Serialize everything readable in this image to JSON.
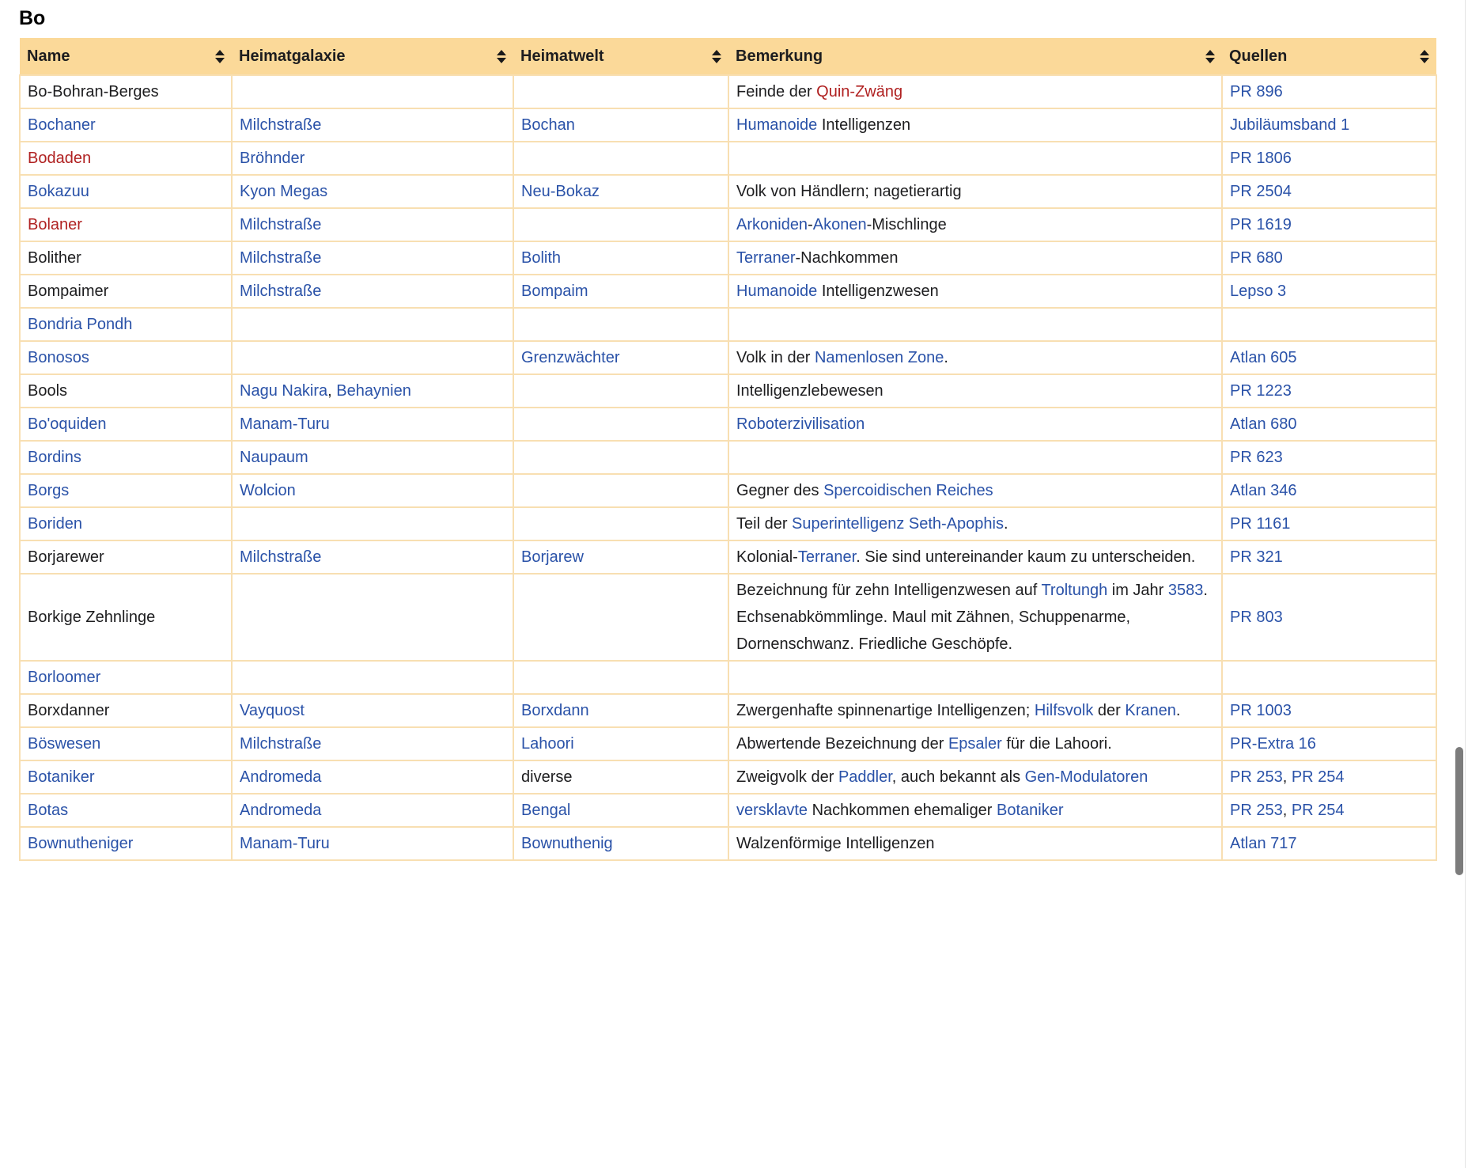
{
  "page": {
    "heading": "Bo"
  },
  "colors": {
    "header_bg": "#FBD999",
    "cell_border": "#F8DFB2",
    "link": "#2A52A8",
    "missing_link": "#B02121",
    "text": "#1D1D1F",
    "scrollbar_thumb": "#7C7C7C"
  },
  "table": {
    "columns": [
      {
        "key": "name",
        "label": "Name"
      },
      {
        "key": "galaxy",
        "label": "Heimatgalaxie"
      },
      {
        "key": "world",
        "label": "Heimatwelt"
      },
      {
        "key": "remark",
        "label": "Bemerkung"
      },
      {
        "key": "sources",
        "label": "Quellen"
      }
    ],
    "rows": [
      {
        "name": [
          {
            "k": "p",
            "t": "Bo-Bohran-Berges"
          }
        ],
        "galaxy": [],
        "world": [],
        "remark": [
          {
            "k": "p",
            "t": "Feinde der "
          },
          {
            "k": "r",
            "t": "Quin-Zwäng"
          }
        ],
        "sources": [
          {
            "k": "l",
            "t": "PR 896"
          }
        ]
      },
      {
        "name": [
          {
            "k": "l",
            "t": "Bochaner"
          }
        ],
        "galaxy": [
          {
            "k": "l",
            "t": "Milchstraße"
          }
        ],
        "world": [
          {
            "k": "l",
            "t": "Bochan"
          }
        ],
        "remark": [
          {
            "k": "l",
            "t": "Humanoide"
          },
          {
            "k": "p",
            "t": " Intelligenzen"
          }
        ],
        "sources": [
          {
            "k": "l",
            "t": "Jubiläumsband 1"
          }
        ]
      },
      {
        "name": [
          {
            "k": "r",
            "t": "Bodaden"
          }
        ],
        "galaxy": [
          {
            "k": "l",
            "t": "Bröhnder"
          }
        ],
        "world": [],
        "remark": [],
        "sources": [
          {
            "k": "l",
            "t": "PR 1806"
          }
        ]
      },
      {
        "name": [
          {
            "k": "l",
            "t": "Bokazuu"
          }
        ],
        "galaxy": [
          {
            "k": "l",
            "t": "Kyon Megas"
          }
        ],
        "world": [
          {
            "k": "l",
            "t": "Neu-Bokaz"
          }
        ],
        "remark": [
          {
            "k": "p",
            "t": "Volk von Händlern; nagetierartig"
          }
        ],
        "sources": [
          {
            "k": "l",
            "t": "PR 2504"
          }
        ]
      },
      {
        "name": [
          {
            "k": "r",
            "t": "Bolaner"
          }
        ],
        "galaxy": [
          {
            "k": "l",
            "t": "Milchstraße"
          }
        ],
        "world": [],
        "remark": [
          {
            "k": "l",
            "t": "Arkoniden"
          },
          {
            "k": "p",
            "t": "-"
          },
          {
            "k": "l",
            "t": "Akonen"
          },
          {
            "k": "p",
            "t": "-Mischlinge"
          }
        ],
        "sources": [
          {
            "k": "l",
            "t": "PR 1619"
          }
        ]
      },
      {
        "name": [
          {
            "k": "p",
            "t": "Bolither"
          }
        ],
        "galaxy": [
          {
            "k": "l",
            "t": "Milchstraße"
          }
        ],
        "world": [
          {
            "k": "l",
            "t": "Bolith"
          }
        ],
        "remark": [
          {
            "k": "l",
            "t": "Terraner"
          },
          {
            "k": "p",
            "t": "-Nachkommen"
          }
        ],
        "sources": [
          {
            "k": "l",
            "t": "PR 680"
          }
        ]
      },
      {
        "name": [
          {
            "k": "p",
            "t": "Bompaimer"
          }
        ],
        "galaxy": [
          {
            "k": "l",
            "t": "Milchstraße"
          }
        ],
        "world": [
          {
            "k": "l",
            "t": "Bompaim"
          }
        ],
        "remark": [
          {
            "k": "l",
            "t": "Humanoide"
          },
          {
            "k": "p",
            "t": " Intelligenzwesen"
          }
        ],
        "sources": [
          {
            "k": "l",
            "t": "Lepso 3"
          }
        ]
      },
      {
        "name": [
          {
            "k": "l",
            "t": "Bondria Pondh"
          }
        ],
        "galaxy": [],
        "world": [],
        "remark": [],
        "sources": []
      },
      {
        "name": [
          {
            "k": "l",
            "t": "Bonosos"
          }
        ],
        "galaxy": [],
        "world": [
          {
            "k": "l",
            "t": "Grenzwächter"
          }
        ],
        "remark": [
          {
            "k": "p",
            "t": "Volk in der "
          },
          {
            "k": "l",
            "t": "Namenlosen Zone"
          },
          {
            "k": "p",
            "t": "."
          }
        ],
        "sources": [
          {
            "k": "l",
            "t": "Atlan 605"
          }
        ]
      },
      {
        "name": [
          {
            "k": "p",
            "t": "Bools"
          }
        ],
        "galaxy": [
          {
            "k": "l",
            "t": "Nagu Nakira"
          },
          {
            "k": "p",
            "t": ", "
          },
          {
            "k": "l",
            "t": "Behaynien"
          }
        ],
        "world": [],
        "remark": [
          {
            "k": "p",
            "t": "Intelligenzlebewesen"
          }
        ],
        "sources": [
          {
            "k": "l",
            "t": "PR 1223"
          }
        ]
      },
      {
        "name": [
          {
            "k": "l",
            "t": "Bo'oquiden"
          }
        ],
        "galaxy": [
          {
            "k": "l",
            "t": "Manam-Turu"
          }
        ],
        "world": [],
        "remark": [
          {
            "k": "l",
            "t": "Roboterzivilisation"
          }
        ],
        "sources": [
          {
            "k": "l",
            "t": "Atlan 680"
          }
        ]
      },
      {
        "name": [
          {
            "k": "l",
            "t": "Bordins"
          }
        ],
        "galaxy": [
          {
            "k": "l",
            "t": "Naupaum"
          }
        ],
        "world": [],
        "remark": [],
        "sources": [
          {
            "k": "l",
            "t": "PR 623"
          }
        ]
      },
      {
        "name": [
          {
            "k": "l",
            "t": "Borgs"
          }
        ],
        "galaxy": [
          {
            "k": "l",
            "t": "Wolcion"
          }
        ],
        "world": [],
        "remark": [
          {
            "k": "p",
            "t": "Gegner des "
          },
          {
            "k": "l",
            "t": "Spercoidischen Reiches"
          }
        ],
        "sources": [
          {
            "k": "l",
            "t": "Atlan 346"
          }
        ]
      },
      {
        "name": [
          {
            "k": "l",
            "t": "Boriden"
          }
        ],
        "galaxy": [],
        "world": [],
        "remark": [
          {
            "k": "p",
            "t": "Teil der "
          },
          {
            "k": "l",
            "t": "Superintelligenz Seth-Apophis"
          },
          {
            "k": "p",
            "t": "."
          }
        ],
        "sources": [
          {
            "k": "l",
            "t": "PR 1161"
          }
        ]
      },
      {
        "name": [
          {
            "k": "p",
            "t": "Borjarewer"
          }
        ],
        "galaxy": [
          {
            "k": "l",
            "t": "Milchstraße"
          }
        ],
        "world": [
          {
            "k": "l",
            "t": "Borjarew"
          }
        ],
        "remark": [
          {
            "k": "p",
            "t": "Kolonial-"
          },
          {
            "k": "l",
            "t": "Terraner"
          },
          {
            "k": "p",
            "t": ". Sie sind untereinander kaum zu unterscheiden."
          }
        ],
        "sources": [
          {
            "k": "l",
            "t": "PR 321"
          }
        ]
      },
      {
        "name": [
          {
            "k": "p",
            "t": "Borkige Zehnlinge"
          }
        ],
        "galaxy": [],
        "world": [],
        "remark": [
          {
            "k": "p",
            "t": "Bezeichnung für zehn Intelligenzwesen auf "
          },
          {
            "k": "l",
            "t": "Troltungh"
          },
          {
            "k": "p",
            "t": " im Jahr "
          },
          {
            "k": "l",
            "t": "3583"
          },
          {
            "k": "p",
            "t": ". Echsenabkömmlinge. Maul mit Zähnen, Schuppenarme, Dornenschwanz. Friedliche Geschöpfe."
          }
        ],
        "sources": [
          {
            "k": "l",
            "t": "PR 803"
          }
        ]
      },
      {
        "name": [
          {
            "k": "l",
            "t": "Borloomer"
          }
        ],
        "galaxy": [],
        "world": [],
        "remark": [],
        "sources": []
      },
      {
        "name": [
          {
            "k": "p",
            "t": "Borxdanner"
          }
        ],
        "galaxy": [
          {
            "k": "l",
            "t": "Vayquost"
          }
        ],
        "world": [
          {
            "k": "l",
            "t": "Borxdann"
          }
        ],
        "remark": [
          {
            "k": "p",
            "t": "Zwergenhafte spinnenartige Intelligenzen; "
          },
          {
            "k": "l",
            "t": "Hilfsvolk"
          },
          {
            "k": "p",
            "t": " der "
          },
          {
            "k": "l",
            "t": "Kranen"
          },
          {
            "k": "p",
            "t": "."
          }
        ],
        "sources": [
          {
            "k": "l",
            "t": "PR 1003"
          }
        ]
      },
      {
        "name": [
          {
            "k": "l",
            "t": "Böswesen"
          }
        ],
        "galaxy": [
          {
            "k": "l",
            "t": "Milchstraße"
          }
        ],
        "world": [
          {
            "k": "l",
            "t": "Lahoori"
          }
        ],
        "remark": [
          {
            "k": "p",
            "t": "Abwertende Bezeichnung der "
          },
          {
            "k": "l",
            "t": "Epsaler"
          },
          {
            "k": "p",
            "t": " für die Lahoori."
          }
        ],
        "sources": [
          {
            "k": "l",
            "t": "PR-Extra 16"
          }
        ]
      },
      {
        "name": [
          {
            "k": "l",
            "t": "Botaniker"
          }
        ],
        "galaxy": [
          {
            "k": "l",
            "t": "Andromeda"
          }
        ],
        "world": [
          {
            "k": "p",
            "t": "diverse"
          }
        ],
        "remark": [
          {
            "k": "p",
            "t": "Zweigvolk der "
          },
          {
            "k": "l",
            "t": "Paddler"
          },
          {
            "k": "p",
            "t": ", auch bekannt als "
          },
          {
            "k": "l",
            "t": "Gen-Modulatoren"
          }
        ],
        "sources": [
          {
            "k": "l",
            "t": "PR 253"
          },
          {
            "k": "p",
            "t": ", "
          },
          {
            "k": "l",
            "t": "PR 254"
          }
        ]
      },
      {
        "name": [
          {
            "k": "l",
            "t": "Botas"
          }
        ],
        "galaxy": [
          {
            "k": "l",
            "t": "Andromeda"
          }
        ],
        "world": [
          {
            "k": "l",
            "t": "Bengal"
          }
        ],
        "remark": [
          {
            "k": "l",
            "t": "versklavte"
          },
          {
            "k": "p",
            "t": " Nachkommen ehemaliger "
          },
          {
            "k": "l",
            "t": "Botaniker"
          }
        ],
        "sources": [
          {
            "k": "l",
            "t": "PR 253"
          },
          {
            "k": "p",
            "t": ", "
          },
          {
            "k": "l",
            "t": "PR 254"
          }
        ]
      },
      {
        "name": [
          {
            "k": "l",
            "t": "Bownutheniger"
          }
        ],
        "galaxy": [
          {
            "k": "l",
            "t": "Manam-Turu"
          }
        ],
        "world": [
          {
            "k": "l",
            "t": "Bownuthenig"
          }
        ],
        "remark": [
          {
            "k": "p",
            "t": "Walzenförmige Intelligenzen"
          }
        ],
        "sources": [
          {
            "k": "l",
            "t": "Atlan 717"
          }
        ]
      }
    ]
  },
  "scrollbar": {
    "visible": true
  }
}
